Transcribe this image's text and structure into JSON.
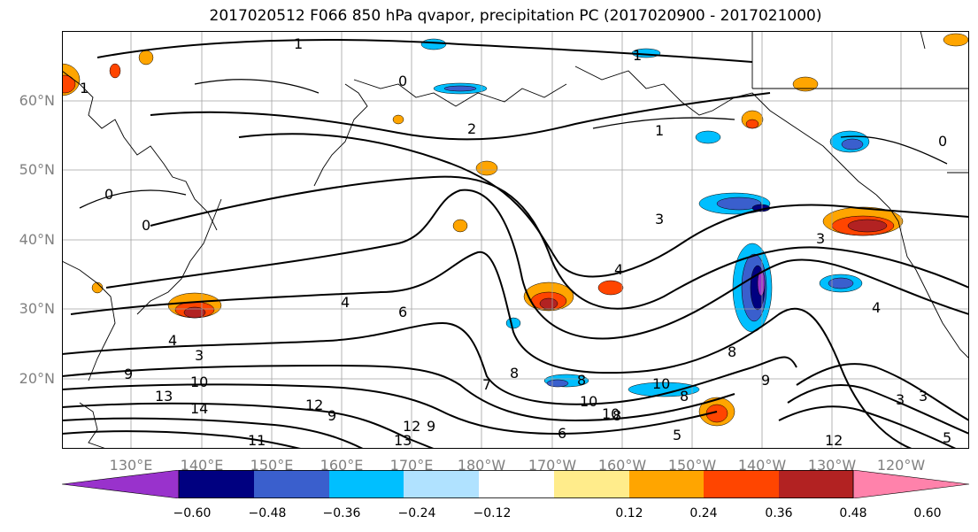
{
  "title": "2017020512 F066 850 hPa qvapor, precipitation PC (2017020900 - 2017021000)",
  "latitude_labels": [
    "60°N",
    "50°N",
    "40°N",
    "30°N",
    "20°N"
  ],
  "longitude_labels": [
    "130°E",
    "140°E",
    "150°E",
    "160°E",
    "170°E",
    "180°W",
    "170°W",
    "160°W",
    "150°W",
    "140°W",
    "130°W",
    "120°W"
  ],
  "colorbar": {
    "ticks": [
      "−0.60",
      "−0.48",
      "−0.36",
      "−0.24",
      "−0.12",
      "0.12",
      "0.24",
      "0.36",
      "0.48",
      "0.60"
    ],
    "colors": [
      "#9932cc",
      "#000080",
      "#3a5fcd",
      "#00bfff",
      "#b0e2ff",
      "#ffffff",
      "#ffec8b",
      "#ffa500",
      "#ff4500",
      "#b22222",
      "#ff82ab"
    ]
  },
  "contour_labels": [
    "1",
    "1",
    "1",
    "0",
    "0",
    "0",
    "0",
    "1",
    "2",
    "3",
    "3",
    "4",
    "4",
    "4",
    "6",
    "4",
    "3",
    "9",
    "10",
    "13",
    "14",
    "12",
    "9",
    "11",
    "13",
    "12",
    "9",
    "7",
    "8",
    "8",
    "10",
    "10",
    "8",
    "10",
    "9",
    "6",
    "8",
    "8",
    "5",
    "12",
    "3",
    "3",
    "5"
  ],
  "colors": {
    "contour": "#000000",
    "coastline": "#000000",
    "gridline": "#a0a0a0"
  }
}
